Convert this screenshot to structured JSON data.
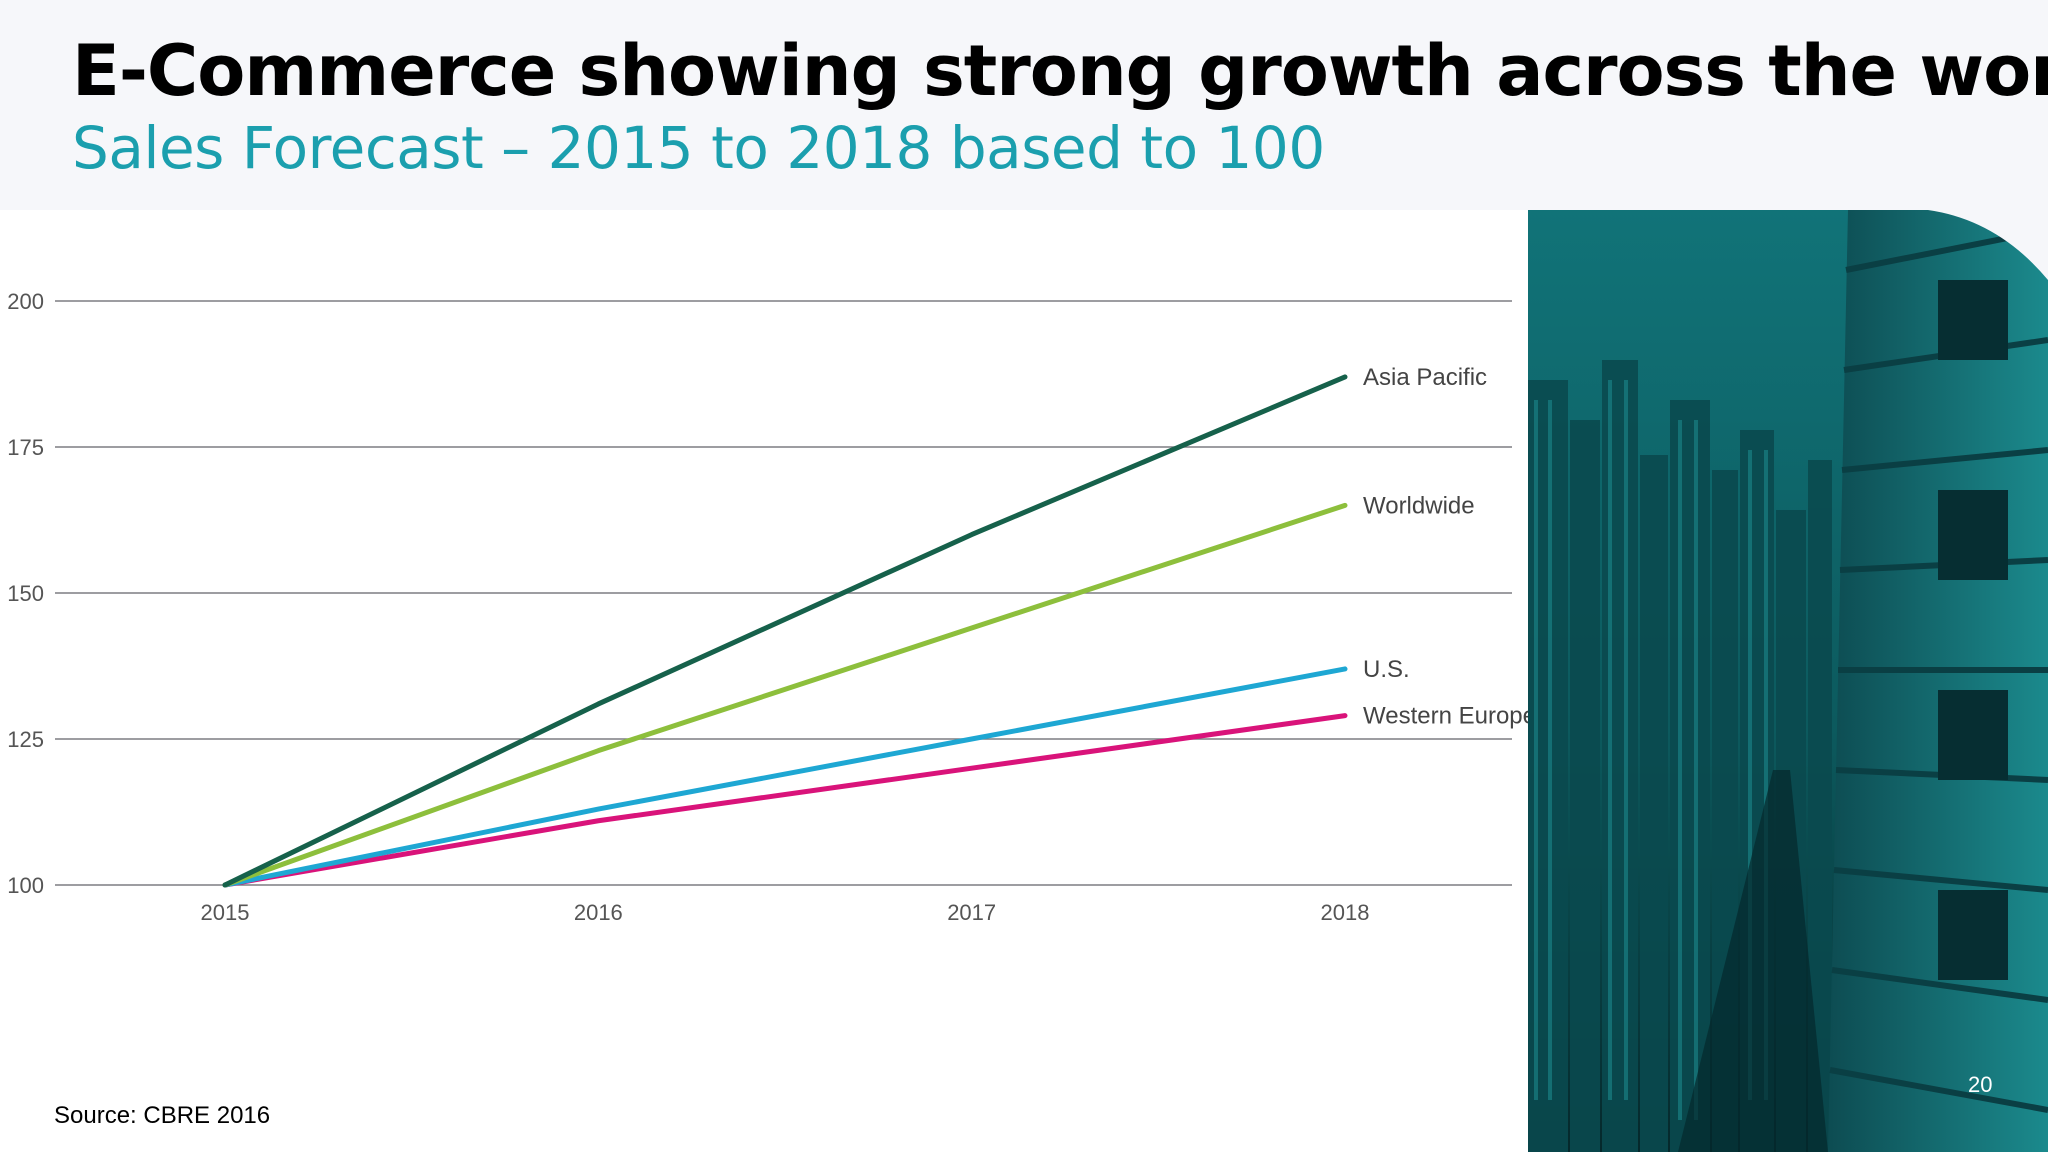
{
  "header": {
    "title": "E-Commerce showing strong growth across the world",
    "subtitle": "Sales Forecast – 2015 to 2018 based to 100"
  },
  "footer": {
    "source": "Source:  CBRE 2016",
    "page_number": "20"
  },
  "colors": {
    "subtitle": "#1b9fae",
    "photo_tint": "#0f6e72"
  },
  "chart_data": {
    "type": "line",
    "x": [
      "2015",
      "2016",
      "2017",
      "2018"
    ],
    "ylim": [
      100,
      200
    ],
    "yticks": [
      "100",
      "125",
      "150",
      "175",
      "200"
    ],
    "grid": true,
    "series": [
      {
        "name": "Asia Pacific",
        "values": [
          100,
          131,
          160,
          187
        ],
        "color": "#16614b"
      },
      {
        "name": "Worldwide",
        "values": [
          100,
          123,
          144,
          165
        ],
        "color": "#8dbf3c"
      },
      {
        "name": "U.S.",
        "values": [
          100,
          113,
          125,
          137
        ],
        "color": "#1ea7d3"
      },
      {
        "name": "Western Europe",
        "values": [
          100,
          111,
          120,
          129
        ],
        "color": "#d9137a"
      }
    ]
  }
}
